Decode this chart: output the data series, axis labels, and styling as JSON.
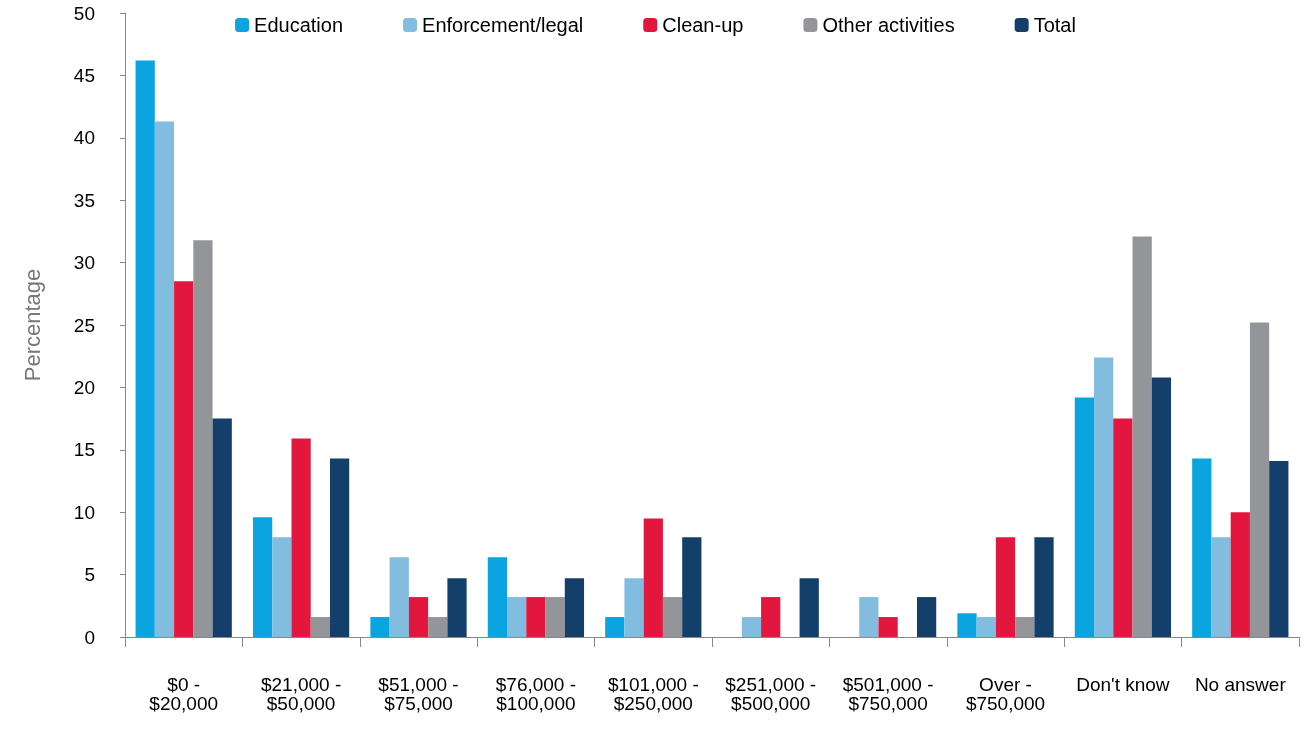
{
  "chart_data": {
    "type": "bar",
    "ylabel": "Percentage",
    "categories": [
      "$0 - $20,000",
      "$21,000 - $50,000",
      "$51,000 - $75,000",
      "$76,000 - $100,000",
      "$101,000 - $250,000",
      "$251,000 - $500,000",
      "$501,000 - $750,000",
      "Over - $750,000",
      "Don't know",
      "No answer"
    ],
    "series": [
      {
        "name": "Education",
        "color": "#0aa5e0",
        "values": [
          46.2,
          9.6,
          1.6,
          6.4,
          1.6,
          null,
          null,
          1.9,
          19.2,
          14.3
        ]
      },
      {
        "name": "Enforcement/legal",
        "color": "#82bde0",
        "values": [
          41.3,
          8.0,
          6.4,
          3.2,
          4.7,
          1.6,
          3.2,
          1.6,
          22.4,
          8.0
        ]
      },
      {
        "name": "Clean-up",
        "color": "#e3173e",
        "values": [
          28.5,
          15.9,
          3.2,
          3.2,
          9.5,
          3.2,
          1.6,
          8.0,
          17.5,
          10.0
        ]
      },
      {
        "name": "Other activities",
        "color": "#939598",
        "values": [
          31.8,
          1.6,
          1.6,
          3.2,
          3.2,
          null,
          null,
          1.6,
          32.1,
          25.2
        ]
      },
      {
        "name": "Total",
        "color": "#143f6a",
        "values": [
          17.5,
          14.3,
          4.7,
          4.7,
          8.0,
          4.7,
          3.2,
          8.0,
          20.8,
          14.1
        ]
      }
    ],
    "ylim": [
      0,
      50
    ],
    "yticks": [
      0,
      5,
      10,
      15,
      20,
      25,
      30,
      35,
      40,
      45,
      50
    ],
    "grid": false,
    "legend": "top"
  }
}
